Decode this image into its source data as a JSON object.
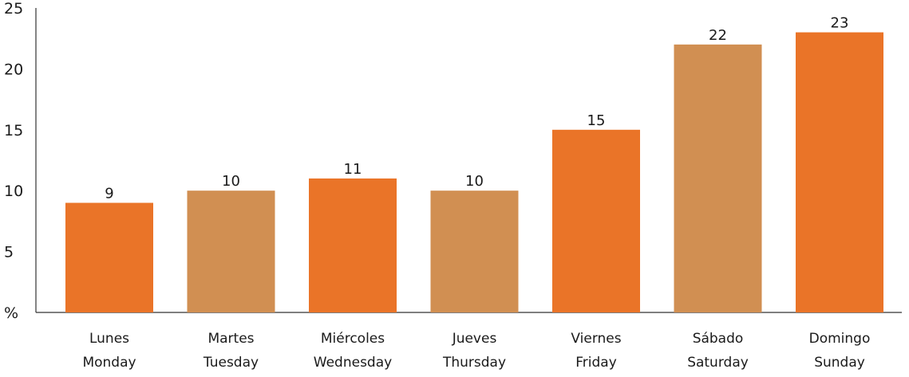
{
  "chart_data": {
    "type": "bar",
    "categories": [
      [
        "Lunes",
        "Monday"
      ],
      [
        "Martes",
        "Tuesday"
      ],
      [
        "Miércoles",
        "Wednesday"
      ],
      [
        "Jueves",
        "Thursday"
      ],
      [
        "Viernes",
        "Friday"
      ],
      [
        "Sábado",
        "Saturday"
      ],
      [
        "Domingo",
        "Sunday"
      ]
    ],
    "values": [
      9,
      10,
      11,
      10,
      15,
      22,
      23
    ],
    "value_labels": [
      "9",
      "10",
      "11",
      "10",
      "15",
      "22",
      "23"
    ],
    "bar_colors": [
      "#ea7428",
      "#d18f52",
      "#ea7428",
      "#d18f52",
      "#ea7428",
      "#d18f52",
      "#ea7428"
    ],
    "ylabel": "%",
    "ylim": [
      0,
      25
    ],
    "yticks": [
      5,
      10,
      15,
      20,
      25
    ],
    "title": "",
    "xlabel": "",
    "grid": false,
    "legend": "none"
  }
}
